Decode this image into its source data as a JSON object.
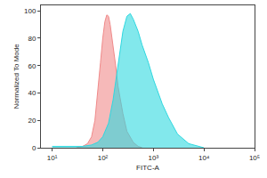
{
  "chart_data": {
    "type": "area",
    "x_label": "FITC-A",
    "y_label": "Normalized To Mode",
    "log": "x",
    "xlim": [
      6,
      100000
    ],
    "xticks": [
      {
        "value": 10,
        "label": "10¹"
      },
      {
        "value": 100,
        "label": "10²"
      },
      {
        "value": 1000,
        "label": "10³"
      },
      {
        "value": 10000,
        "label": "10⁴"
      },
      {
        "value": 100000,
        "label": "10⁵"
      }
    ],
    "ylim": [
      0,
      104
    ],
    "yticks": [
      0,
      20,
      40,
      60,
      80,
      100
    ],
    "grid": false,
    "series": [
      {
        "color": "#f08a8a",
        "x": [
          30,
          40,
          50,
          60,
          70,
          80,
          90,
          100,
          110,
          120,
          130,
          140,
          160,
          180,
          200,
          250,
          300,
          400,
          500,
          600
        ],
        "values": [
          0,
          1,
          3,
          8,
          20,
          40,
          62,
          80,
          92,
          97,
          96,
          90,
          75,
          60,
          45,
          25,
          12,
          4,
          1,
          0
        ]
      },
      {
        "color": "#2fd8e0",
        "x": [
          10,
          20,
          40,
          60,
          80,
          100,
          130,
          160,
          200,
          250,
          300,
          350,
          400,
          500,
          600,
          800,
          1000,
          1500,
          2000,
          3000,
          5000,
          8000,
          10000
        ],
        "values": [
          1,
          1,
          1,
          2,
          4,
          8,
          18,
          35,
          60,
          85,
          96,
          98,
          94,
          85,
          75,
          62,
          50,
          32,
          22,
          10,
          3,
          1,
          0
        ]
      }
    ]
  }
}
